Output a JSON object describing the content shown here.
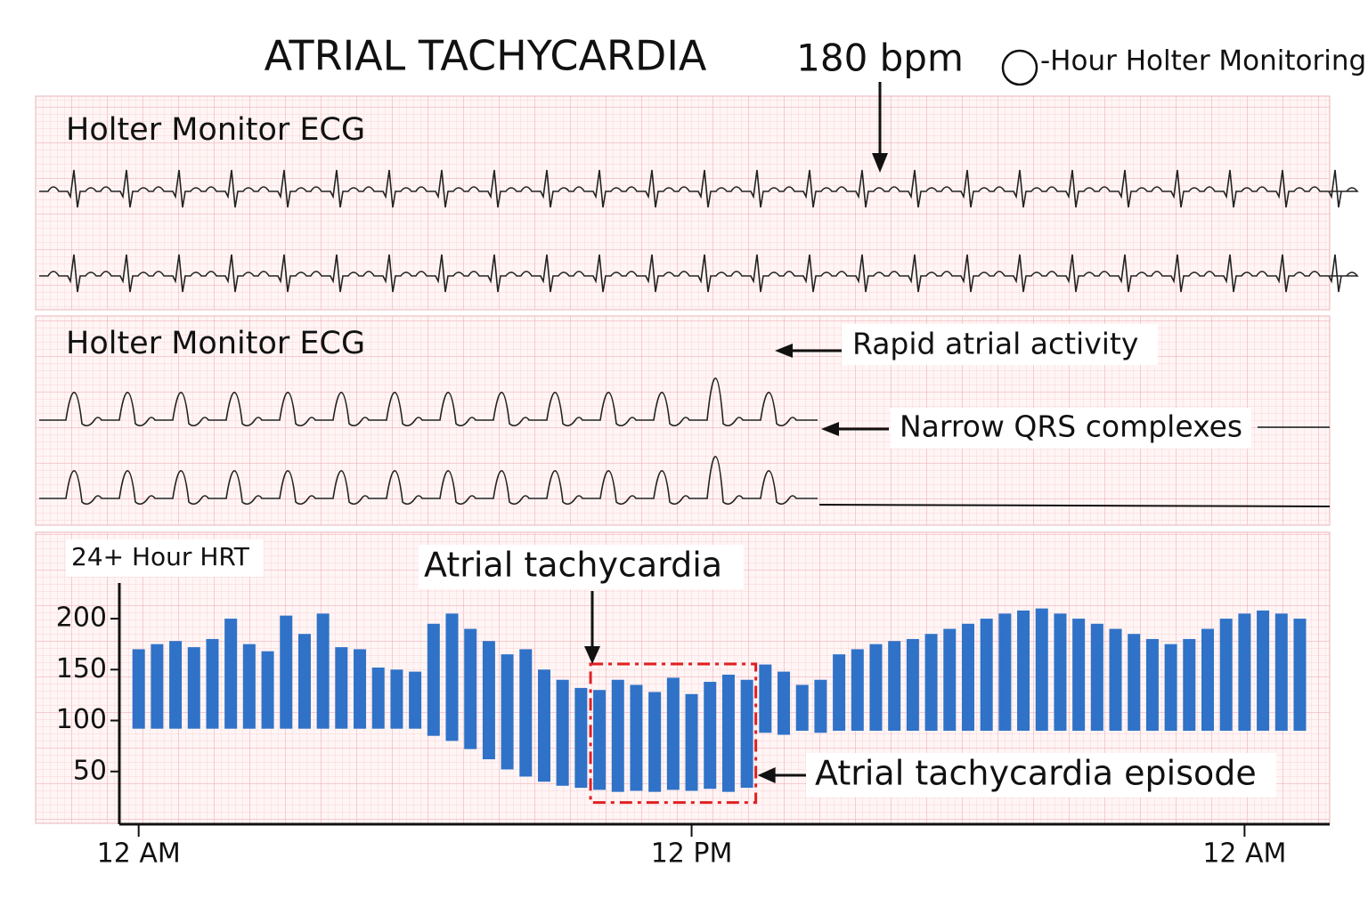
{
  "header": {
    "title": "ATRIAL TACHYCARDIA",
    "rate": "180 bpm",
    "monitoring": "-Hour Holter Monitoring"
  },
  "ecg_panels": [
    {
      "label": "Holter Monitor ECG"
    },
    {
      "label": "Holter Monitor ECG",
      "annotations": [
        "Rapid atrial activity",
        "Narrow QRS complexes"
      ]
    }
  ],
  "chart_data": {
    "type": "range_bar",
    "title": "24+ Hour HRT",
    "annotation": "Atrial tachycardia",
    "episode": {
      "label": "Atrial tachycardia episode",
      "start": 10,
      "end": 13.2
    },
    "color": "#2f72c8",
    "x": [
      0,
      0.4,
      0.8,
      1.2,
      1.6,
      2,
      2.4,
      2.8,
      3.2,
      3.6,
      4,
      4.4,
      4.8,
      5.2,
      5.6,
      6,
      6.4,
      6.8,
      7.2,
      7.6,
      8,
      8.4,
      8.8,
      9.2,
      9.6,
      10,
      10.4,
      10.8,
      11.2,
      11.6,
      12,
      12.4,
      12.8,
      13.2,
      13.6,
      14,
      14.4,
      14.8,
      15.2,
      15.6,
      16,
      16.4,
      16.8,
      17.2,
      17.6,
      18,
      18.4,
      18.8,
      19.2,
      19.6,
      20,
      20.4,
      20.8,
      21.2,
      21.6,
      22,
      22.4,
      22.8,
      23.2,
      23.6,
      24,
      24.4,
      24.8,
      25.2
    ],
    "high": [
      170,
      175,
      178,
      172,
      180,
      200,
      175,
      168,
      203,
      185,
      205,
      172,
      170,
      152,
      150,
      148,
      195,
      205,
      190,
      178,
      165,
      170,
      150,
      140,
      132,
      130,
      140,
      135,
      128,
      142,
      126,
      138,
      145,
      140,
      155,
      148,
      135,
      140,
      165,
      170,
      175,
      178,
      180,
      185,
      190,
      195,
      200,
      205,
      208,
      210,
      205,
      200,
      195,
      190,
      185,
      180,
      175,
      180,
      190,
      200,
      205,
      208,
      205,
      200
    ],
    "low": [
      92,
      92,
      92,
      92,
      92,
      92,
      92,
      92,
      92,
      92,
      92,
      92,
      92,
      92,
      92,
      92,
      85,
      80,
      72,
      62,
      52,
      45,
      40,
      36,
      34,
      32,
      30,
      31,
      30,
      32,
      31,
      33,
      30,
      34,
      88,
      86,
      90,
      88,
      90,
      90,
      90,
      90,
      90,
      90,
      90,
      90,
      90,
      90,
      90,
      90,
      90,
      90,
      90,
      90,
      90,
      90,
      90,
      90,
      90,
      90,
      90,
      90,
      90,
      90
    ],
    "xlim": [
      -0.4,
      25.5
    ],
    "xticks": [
      {
        "value": 0,
        "label": "12 AM"
      },
      {
        "value": 12,
        "label": "12 PM"
      },
      {
        "value": 24,
        "label": "12 AM"
      }
    ],
    "ylim": [
      0,
      235
    ],
    "yticks": [
      50,
      100,
      150,
      200
    ]
  }
}
